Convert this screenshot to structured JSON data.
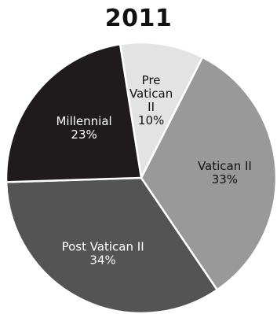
{
  "chart_data": {
    "type": "pie",
    "title": "2011",
    "slices": [
      {
        "label_lines": [
          "Pre",
          "Vatican",
          "II"
        ],
        "value": 10,
        "value_label": "10%",
        "color": "#e3e3e3",
        "text_color": "#111111"
      },
      {
        "label_lines": [
          "Vatican II"
        ],
        "value": 33,
        "value_label": "33%",
        "color": "#999999",
        "text_color": "#111111"
      },
      {
        "label_lines": [
          "Post Vatican II"
        ],
        "value": 34,
        "value_label": "34%",
        "color": "#545454",
        "text_color": "#ffffff"
      },
      {
        "label_lines": [
          "Millennial"
        ],
        "value": 23,
        "value_label": "23%",
        "color": "#1f1b1c",
        "text_color": "#ffffff"
      }
    ]
  }
}
